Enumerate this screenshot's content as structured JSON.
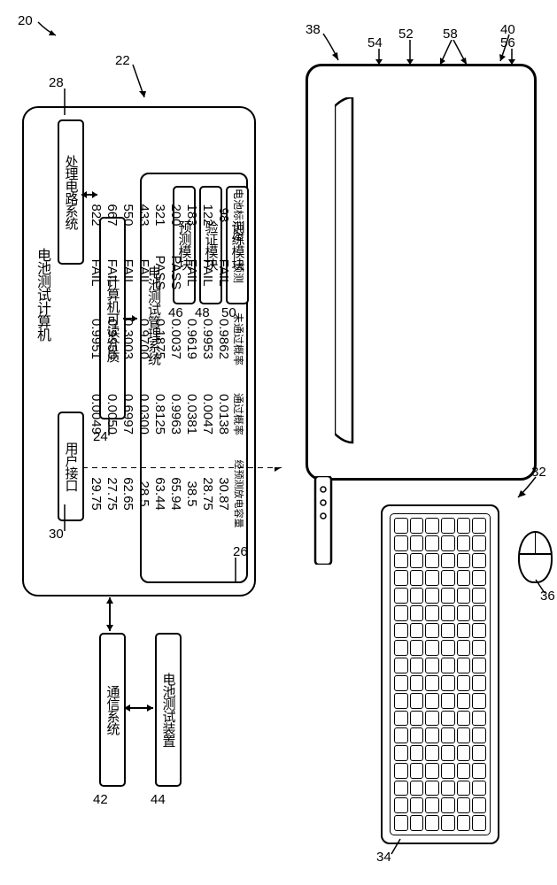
{
  "callouts": {
    "c20": "20",
    "c22": "22",
    "c28": "28",
    "c30": "30",
    "c24": "24",
    "c26": "26",
    "c46": "46",
    "c48": "48",
    "c50": "50",
    "c42": "42",
    "c44": "44",
    "c38": "38",
    "c40": "40",
    "c32": "32",
    "c34": "34",
    "c36": "36",
    "c54": "54",
    "c52": "52",
    "c58": "58",
    "c56": "56"
  },
  "labels": {
    "main_box": "电池测试计算机",
    "proc": "处理电路系统",
    "ui": "用户接口",
    "medium": "计算机可读介质",
    "mgmt": "电池测试管理系统",
    "predict": "预测模块",
    "verify": "验证模块",
    "train": "训练模块",
    "comm": "通信系统",
    "device": "电池测试装置"
  },
  "table": {
    "headers": {
      "id": "电池标识符",
      "pred": "预测",
      "fail_prob": "未通过概率",
      "pass_prob": "通过概率",
      "cap": "经预测放电容量"
    },
    "rows": [
      {
        "id": "98",
        "pred": "FAIL",
        "fail": "0.9862",
        "pass": "0.0138",
        "cap": "30.87"
      },
      {
        "id": "122",
        "pred": "FAIL",
        "fail": "0.9953",
        "pass": "0.0047",
        "cap": "28.75"
      },
      {
        "id": "183",
        "pred": "FAIL",
        "fail": "0.9619",
        "pass": "0.0381",
        "cap": "38.5"
      },
      {
        "id": "200",
        "pred": "PASS",
        "fail": "0.0037",
        "pass": "0.9963",
        "cap": "65.94"
      },
      {
        "id": "321",
        "pred": "PASS",
        "fail": "0.1875",
        "pass": "0.8125",
        "cap": "63.44"
      },
      {
        "id": "433",
        "pred": "FAIL",
        "fail": "0.9700",
        "pass": "0.0300",
        "cap": "28.5"
      },
      {
        "id": "550",
        "pred": "FAIL",
        "fail": "0.3003",
        "pass": "0.6997",
        "cap": "62.65"
      },
      {
        "id": "667",
        "pred": "FAIL",
        "fail": "0.9950",
        "pass": "0.0050",
        "cap": "27.75"
      },
      {
        "id": "822",
        "pred": "FAIL",
        "fail": "0.9951",
        "pass": "0.0049",
        "cap": "29.75"
      }
    ]
  },
  "style": {
    "bg": "#ffffff",
    "stroke": "#000000",
    "font_main": 15,
    "font_callout": 15,
    "font_table": 13
  }
}
